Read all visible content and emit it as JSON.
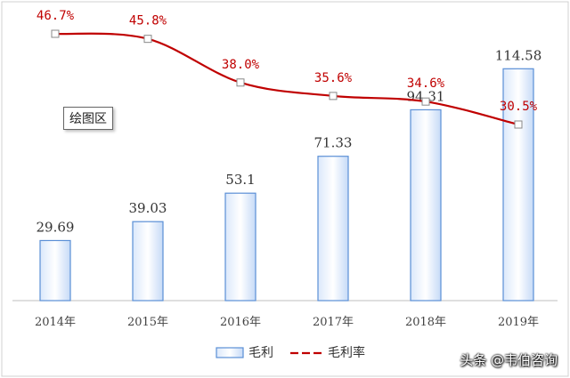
{
  "chart_data": {
    "type": "bar",
    "categories": [
      "2014年",
      "2015年",
      "2016年",
      "2017年",
      "2018年",
      "2019年"
    ],
    "series": [
      {
        "name": "毛利",
        "type": "bar",
        "values": [
          29.69,
          39.03,
          53.1,
          71.33,
          94.31,
          114.58
        ],
        "labels": [
          "29.69",
          "39.03",
          "53.1",
          "71.33",
          "94.31",
          "114.58"
        ],
        "color": "#5b8fd6"
      },
      {
        "name": "毛利率",
        "type": "line",
        "values": [
          46.7,
          45.8,
          38.0,
          35.6,
          34.6,
          30.5
        ],
        "labels": [
          "46.7%",
          "45.8%",
          "38.0%",
          "35.6%",
          "34.6%",
          "30.5%"
        ],
        "color": "#c00000"
      }
    ],
    "title": "",
    "xlabel": "",
    "ylabel": "",
    "ylim": [
      0,
      140
    ],
    "y2lim": [
      25,
      50
    ],
    "grid": false,
    "legend": "bottom",
    "plot_area_label": "绘图区"
  },
  "watermark": "头条 @韦伯咨询"
}
